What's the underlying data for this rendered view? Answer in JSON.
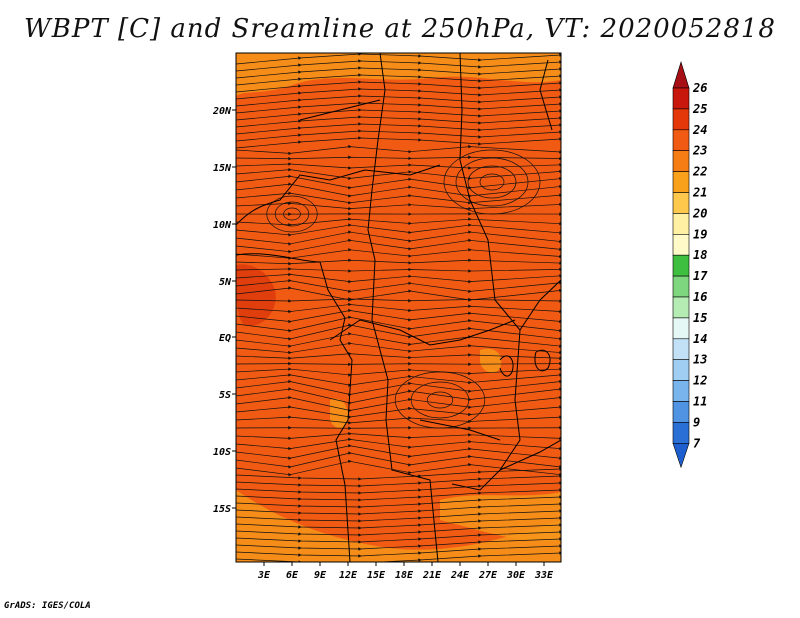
{
  "title": "WBPT [C] and Sreamline at 250hPa, VT: 2020052818",
  "credit": "GrADS: IGES/COLA",
  "map": {
    "lat_labels": [
      "20N",
      "15N",
      "10N",
      "5N",
      "EQ",
      "5S",
      "10S",
      "15S"
    ],
    "lon_labels": [
      "3E",
      "6E",
      "9E",
      "12E",
      "15E",
      "18E",
      "21E",
      "24E",
      "27E",
      "30E",
      "33E"
    ],
    "colors": {
      "background_field": "#f15a12",
      "warm_patch": "#dd3a0c",
      "cool_patch": "#f6961a",
      "streamline": "#111111",
      "border": "#000000"
    }
  },
  "colorbar": {
    "labels": [
      "26",
      "25",
      "24",
      "23",
      "22",
      "21",
      "20",
      "19",
      "18",
      "17",
      "16",
      "15",
      "14",
      "13",
      "12",
      "11",
      "9",
      "7"
    ],
    "colors": [
      "#a50f15",
      "#c8180d",
      "#e4380a",
      "#f15a12",
      "#f57d14",
      "#f9a11b",
      "#fdc84b",
      "#fff0a4",
      "#fffac8",
      "#3fbf3f",
      "#7ed67e",
      "#b4ecb4",
      "#e6f8f6",
      "#c2e1f6",
      "#a0cdf2",
      "#7ab4ec",
      "#4f93e2",
      "#2a6fd6",
      "#1e5fd0"
    ]
  }
}
